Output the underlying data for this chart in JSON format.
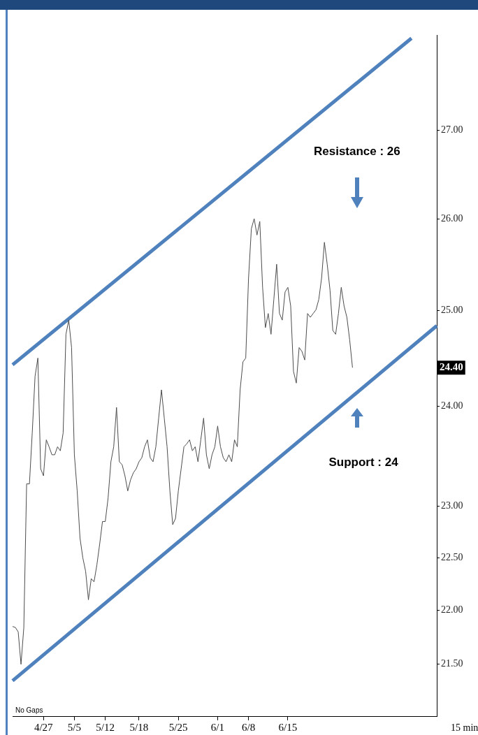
{
  "chart_data": {
    "type": "line",
    "categories": [
      null,
      null,
      null,
      null,
      null,
      null,
      null,
      null,
      null,
      null,
      null,
      "4/27",
      null,
      null,
      null,
      null,
      null,
      null,
      null,
      null,
      null,
      null,
      "5/5",
      null,
      null,
      null,
      null,
      null,
      null,
      null,
      null,
      null,
      null,
      "5/12",
      null,
      null,
      null,
      null,
      null,
      null,
      null,
      null,
      null,
      null,
      null,
      "5/18",
      null,
      null,
      null,
      null,
      null,
      null,
      null,
      null,
      null,
      null,
      null,
      null,
      null,
      "5/25",
      null,
      null,
      null,
      null,
      null,
      null,
      null,
      null,
      null,
      null,
      null,
      null,
      null,
      "6/1",
      null,
      null,
      null,
      null,
      null,
      null,
      null,
      null,
      null,
      null,
      "6/8",
      null,
      null,
      null,
      null,
      null,
      null,
      null,
      null,
      null,
      null,
      null,
      null,
      null,
      "6/15",
      null,
      null,
      null,
      null,
      null,
      null,
      null,
      null,
      null,
      null,
      null,
      null,
      null,
      null,
      null,
      null,
      null,
      null,
      null,
      null,
      null,
      null,
      null,
      null,
      null,
      null,
      null,
      null,
      null,
      null,
      null,
      null,
      null,
      null,
      null,
      null,
      null,
      null,
      null,
      null,
      null,
      null,
      null,
      null,
      null,
      null,
      null,
      null,
      null,
      null,
      null,
      null,
      null
    ],
    "series": [
      {
        "color": "#4d4d4d",
        "values": [
          21.85,
          21.84,
          21.8,
          21.5,
          21.84,
          23.22,
          23.22,
          23.73,
          24.31,
          24.5,
          23.37,
          23.3,
          23.66,
          23.59,
          23.51,
          23.51,
          23.59,
          23.55,
          23.73,
          24.75,
          24.9,
          24.61,
          23.51,
          23.15,
          22.69,
          22.5,
          22.37,
          22.1,
          22.3,
          22.27,
          22.43,
          22.63,
          22.85,
          22.85,
          23.08,
          23.44,
          23.59,
          23.99,
          23.44,
          23.41,
          23.3,
          23.15,
          23.26,
          23.33,
          23.37,
          23.44,
          23.48,
          23.59,
          23.66,
          23.48,
          23.44,
          23.59,
          23.88,
          24.17,
          23.88,
          23.59,
          23.15,
          22.82,
          22.88,
          23.15,
          23.37,
          23.59,
          23.62,
          23.66,
          23.55,
          23.59,
          23.44,
          23.66,
          23.88,
          23.51,
          23.37,
          23.51,
          23.59,
          23.8,
          23.59,
          23.48,
          23.44,
          23.51,
          23.44,
          23.66,
          23.59,
          24.17,
          24.46,
          24.5,
          25.35,
          25.89,
          26.0,
          25.82,
          25.97,
          25.25,
          24.82,
          24.97,
          24.75,
          25.12,
          25.5,
          24.97,
          24.9,
          25.2,
          25.25,
          25.05,
          24.36,
          24.24,
          24.61,
          24.57,
          24.48,
          24.97,
          24.93,
          24.97,
          25.01,
          25.12,
          25.35,
          25.74,
          25.5,
          25.22,
          24.79,
          24.75,
          24.97,
          25.25,
          25.05,
          24.93,
          24.69,
          24.4,
          null,
          null,
          null,
          null,
          null,
          null,
          null,
          null,
          null,
          null,
          null,
          null,
          null,
          null,
          null,
          null,
          null,
          null,
          null,
          null,
          null,
          null,
          null,
          null,
          null,
          null,
          null,
          null,
          null,
          null
        ]
      },
      {
        "color": "#4f81bd",
        "values": [
          24.43,
          null,
          null,
          null,
          null,
          null,
          null,
          null,
          null,
          null,
          null,
          null,
          null,
          null,
          null,
          null,
          null,
          null,
          null,
          null,
          null,
          null,
          null,
          null,
          null,
          null,
          null,
          null,
          null,
          null,
          null,
          null,
          null,
          null,
          null,
          null,
          null,
          null,
          null,
          null,
          null,
          null,
          null,
          null,
          null,
          null,
          null,
          null,
          null,
          null,
          null,
          null,
          null,
          null,
          null,
          null,
          null,
          null,
          null,
          null,
          null,
          null,
          null,
          null,
          null,
          null,
          null,
          null,
          null,
          null,
          null,
          null,
          null,
          null,
          null,
          null,
          null,
          null,
          null,
          null,
          null,
          null,
          null,
          null,
          null,
          null,
          null,
          null,
          null,
          null,
          null,
          null,
          null,
          null,
          null,
          null,
          null,
          null,
          null,
          null,
          null,
          null,
          null,
          null,
          null,
          null,
          null,
          null,
          null,
          null,
          null,
          null,
          null,
          null,
          null,
          null,
          null,
          null,
          null,
          null,
          null,
          null,
          null,
          null,
          null,
          null,
          null,
          null,
          null,
          null,
          null,
          null,
          null,
          null,
          null,
          null,
          null,
          null,
          null,
          null,
          null,
          null,
          28.08,
          null,
          null,
          null,
          null,
          null,
          null,
          null,
          null,
          null
        ]
      },
      {
        "color": "#4f81bd",
        "values": [
          21.35,
          null,
          null,
          null,
          null,
          null,
          null,
          null,
          null,
          null,
          null,
          null,
          null,
          null,
          null,
          null,
          null,
          null,
          null,
          null,
          null,
          null,
          null,
          null,
          null,
          null,
          null,
          null,
          null,
          null,
          null,
          null,
          null,
          null,
          null,
          null,
          null,
          null,
          null,
          null,
          null,
          null,
          null,
          null,
          null,
          null,
          null,
          null,
          null,
          null,
          null,
          null,
          null,
          null,
          null,
          null,
          null,
          null,
          null,
          null,
          null,
          null,
          null,
          null,
          null,
          null,
          null,
          null,
          null,
          null,
          null,
          null,
          null,
          null,
          null,
          null,
          null,
          null,
          null,
          null,
          null,
          null,
          null,
          null,
          null,
          null,
          null,
          null,
          null,
          null,
          null,
          null,
          null,
          null,
          null,
          null,
          null,
          null,
          null,
          null,
          null,
          null,
          null,
          null,
          null,
          null,
          null,
          null,
          null,
          null,
          null,
          null,
          null,
          null,
          null,
          null,
          null,
          null,
          null,
          null,
          null,
          null,
          null,
          null,
          null,
          null,
          null,
          null,
          null,
          null,
          null,
          null,
          null,
          null,
          null,
          null,
          null,
          null,
          null,
          null,
          null,
          null,
          null,
          null,
          null,
          null,
          null,
          null,
          null,
          null,
          null,
          24.84
        ]
      }
    ],
    "ylim": [
      21.03,
      28.12
    ],
    "yticks": [
      {
        "value": 21.5,
        "label": "21.50"
      },
      {
        "value": 22,
        "label": "22.00"
      },
      {
        "value": 22.5,
        "label": "22.50"
      },
      {
        "value": 23,
        "label": "23.00"
      },
      {
        "value": 24,
        "label": "24.00"
      },
      {
        "value": 24.4,
        "label": "24.40"
      },
      {
        "value": 25,
        "label": "25.00"
      },
      {
        "value": 26,
        "label": "26.00"
      },
      {
        "value": 27,
        "label": "27.00"
      }
    ],
    "log": true,
    "annotations": [
      "Resistance : 26",
      "Support : 24",
      "No Gaps",
      "15 min"
    ],
    "grid": false,
    "legend": false,
    "marker": "none"
  }
}
